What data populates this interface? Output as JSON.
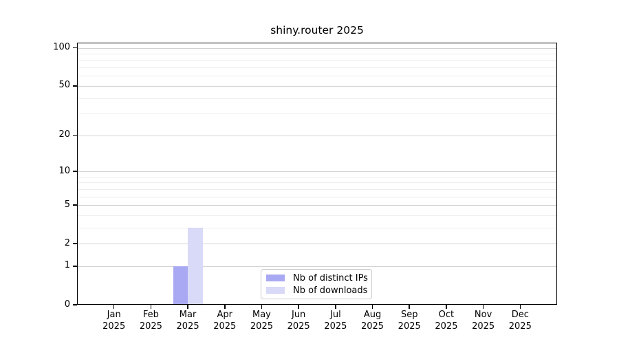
{
  "chart_data": {
    "type": "bar",
    "title": "shiny.router 2025",
    "x": [
      "Jan",
      "Feb",
      "Mar",
      "Apr",
      "May",
      "Jun",
      "Jul",
      "Aug",
      "Sep",
      "Oct",
      "Nov",
      "Dec"
    ],
    "x_year": "2025",
    "series": [
      {
        "name": "Nb of distinct IPs",
        "color": "#a9a9f3",
        "values": [
          0,
          0,
          1,
          0,
          0,
          0,
          0,
          0,
          0,
          0,
          0,
          0
        ]
      },
      {
        "name": "Nb of downloads",
        "color": "#d9d9f8",
        "values": [
          0,
          0,
          3,
          0,
          0,
          0,
          0,
          0,
          0,
          0,
          0,
          0
        ]
      }
    ],
    "yscale": "log1p",
    "ylim": [
      0,
      110
    ],
    "y_ticks": [
      0,
      1,
      2,
      5,
      10,
      20,
      50,
      100
    ],
    "y_minor_gridlines": [
      3,
      4,
      6,
      7,
      8,
      9,
      30,
      40,
      60,
      70,
      80,
      90
    ],
    "grid": true,
    "legend_position": "lower center",
    "colors": {
      "major_grid": "#d2d2d2",
      "minor_grid": "#ededed",
      "axis": "#000000",
      "legend_border": "#cccccc",
      "background": "#ffffff",
      "text": "#000000"
    }
  }
}
